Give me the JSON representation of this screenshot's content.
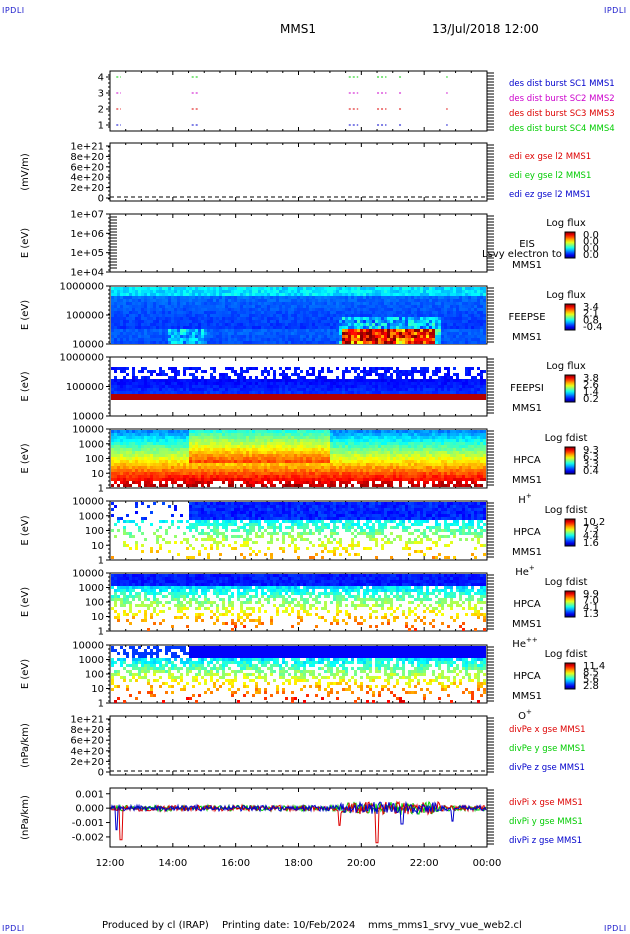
{
  "header": {
    "corner_label": "IPDLI",
    "title": "MMS1",
    "datetime": "13/Jul/2018 12:00"
  },
  "footer": {
    "produced_by": "Produced by cl (IRAP)",
    "printing_date": "Printing date: 10/Feb/2024",
    "filename": "mms_mms1_srvy_vue_web2.cl"
  },
  "colors": {
    "red": "#dd0000",
    "green": "#00cc00",
    "blue": "#0000cc",
    "magenta": "#cc00cc",
    "grid": "#000000"
  },
  "chart_data": [
    {
      "type": "line",
      "panel": "burst",
      "yticks": [
        "4",
        "3",
        "2",
        "1"
      ],
      "y_values": [
        4,
        3,
        2,
        1
      ],
      "ylim": [
        0.5,
        4.5
      ],
      "series": [
        {
          "name": "des dist burst SC1 MMS1",
          "color": "#0000cc",
          "y": 1
        },
        {
          "name": "des dist burst SC2 MMS2",
          "color": "#cc00cc",
          "y": 3
        },
        {
          "name": "des dist burst SC3 MMS3",
          "color": "#dd0000",
          "y": 2
        },
        {
          "name": "des dist burst SC4 MMS4",
          "color": "#00cc00",
          "y": 4
        }
      ]
    },
    {
      "type": "line",
      "panel": "edi",
      "ylabel": "(mV/m)",
      "yticks": [
        "1e+21",
        "8e+20",
        "6e+20",
        "4e+20",
        "2e+20",
        "0"
      ],
      "y_values": [
        1e+21,
        8e+20,
        6e+20,
        4e+20,
        2e+20,
        0
      ],
      "ylim": [
        0,
        1e+21
      ],
      "series": [
        {
          "name": "edi ex gse l2 MMS1",
          "color": "#dd0000"
        },
        {
          "name": "edi ey gse l2 MMS1",
          "color": "#00cc00"
        },
        {
          "name": "edi ez gse l2 MMS1",
          "color": "#0000cc"
        }
      ]
    },
    {
      "type": "heatmap",
      "panel": "eis",
      "ylabel": "E (eV)",
      "yticks": [
        "1e+07",
        "1e+06",
        "1e+05",
        "1e+04"
      ],
      "y_values": [
        10000000.0,
        1000000.0,
        100000.0,
        10000.0
      ],
      "log_scale": true,
      "instrument": "EIS",
      "sub_label": "MMS1",
      "overflow_text": "Lsvy electron to",
      "colorbar_title": "Log flux",
      "colorbar_ticks": [
        "0.0",
        "0.0",
        "0.0",
        "0.0"
      ]
    },
    {
      "type": "heatmap",
      "panel": "feepse",
      "ylabel": "E (eV)",
      "yticks": [
        "1000000",
        "100000",
        "10000"
      ],
      "y_values": [
        1000000,
        100000,
        10000
      ],
      "log_scale": true,
      "instrument": "FEEPSE",
      "sub_label": "MMS1",
      "colorbar_title": "Log flux",
      "colorbar_ticks": [
        "3.4",
        "2.1",
        "0.8",
        "-0.4"
      ]
    },
    {
      "type": "heatmap",
      "panel": "feepsi",
      "ylabel": "E (eV)",
      "yticks": [
        "1000000",
        "100000",
        "10000"
      ],
      "y_values": [
        1000000,
        100000,
        10000
      ],
      "log_scale": true,
      "instrument": "FEEPSI",
      "sub_label": "MMS1",
      "colorbar_title": "Log flux",
      "colorbar_ticks": [
        "3.8",
        "2.6",
        "1.4",
        "0.2"
      ]
    },
    {
      "type": "heatmap",
      "panel": "hpca_h",
      "ylabel": "E (eV)",
      "yticks": [
        "10000",
        "1000",
        "100",
        "10",
        "1"
      ],
      "y_values": [
        10000,
        1000,
        100,
        10,
        1
      ],
      "log_scale": true,
      "instrument": "HPCA",
      "sub_label": "MMS1",
      "species": "H",
      "species_sup": "+",
      "colorbar_title": "Log fdist",
      "colorbar_ticks": [
        "9.3",
        "6.3",
        "3.3",
        "0.4"
      ]
    },
    {
      "type": "heatmap",
      "panel": "hpca_he",
      "ylabel": "E (eV)",
      "yticks": [
        "10000",
        "1000",
        "100",
        "10",
        "1"
      ],
      "y_values": [
        10000,
        1000,
        100,
        10,
        1
      ],
      "log_scale": true,
      "instrument": "HPCA",
      "sub_label": "MMS1",
      "species": "He",
      "species_sup": "+",
      "colorbar_title": "Log fdist",
      "colorbar_ticks": [
        "10.2",
        "7.3",
        "4.4",
        "1.6"
      ]
    },
    {
      "type": "heatmap",
      "panel": "hpca_hepp",
      "ylabel": "E (eV)",
      "yticks": [
        "10000",
        "1000",
        "100",
        "10",
        "1"
      ],
      "y_values": [
        10000,
        1000,
        100,
        10,
        1
      ],
      "log_scale": true,
      "instrument": "HPCA",
      "sub_label": "MMS1",
      "species": "He",
      "species_sup": "++",
      "colorbar_title": "Log fdist",
      "colorbar_ticks": [
        "9.9",
        "7.0",
        "4.1",
        "1.3"
      ]
    },
    {
      "type": "heatmap",
      "panel": "hpca_o",
      "ylabel": "E (eV)",
      "yticks": [
        "10000",
        "1000",
        "100",
        "10",
        "1"
      ],
      "y_values": [
        10000,
        1000,
        100,
        10,
        1
      ],
      "log_scale": true,
      "instrument": "HPCA",
      "sub_label": "MMS1",
      "species": "O",
      "species_sup": "+",
      "colorbar_title": "Log fdist",
      "colorbar_ticks": [
        "11.4",
        "8.5",
        "5.6",
        "2.8"
      ]
    },
    {
      "type": "line",
      "panel": "divpe",
      "ylabel": "(nPa/km)",
      "yticks": [
        "1e+21",
        "8e+20",
        "6e+20",
        "4e+20",
        "2e+20",
        "0"
      ],
      "y_values": [
        1e+21,
        8e+20,
        6e+20,
        4e+20,
        2e+20,
        0
      ],
      "ylim": [
        0,
        1e+21
      ],
      "series": [
        {
          "name": "divPe x gse MMS1",
          "color": "#dd0000"
        },
        {
          "name": "divPe y gse MMS1",
          "color": "#00cc00"
        },
        {
          "name": "divPe z gse MMS1",
          "color": "#0000cc"
        }
      ]
    },
    {
      "type": "line",
      "panel": "divpi",
      "ylabel": "(nPa/km)",
      "yticks": [
        "0.001",
        "0.000",
        "-0.001",
        "-0.002"
      ],
      "y_values": [
        0.001,
        0.0,
        -0.001,
        -0.002
      ],
      "ylim": [
        -0.0027,
        0.0014
      ],
      "series": [
        {
          "name": "divPi x gse MMS1",
          "color": "#dd0000"
        },
        {
          "name": "divPi y gse MMS1",
          "color": "#00cc00"
        },
        {
          "name": "divPi z gse MMS1",
          "color": "#0000cc"
        }
      ]
    }
  ],
  "x_axis": {
    "ticks": [
      "12:00",
      "14:00",
      "16:00",
      "18:00",
      "20:00",
      "22:00",
      "00:00"
    ],
    "hours": [
      12,
      14,
      16,
      18,
      20,
      22,
      24
    ]
  }
}
